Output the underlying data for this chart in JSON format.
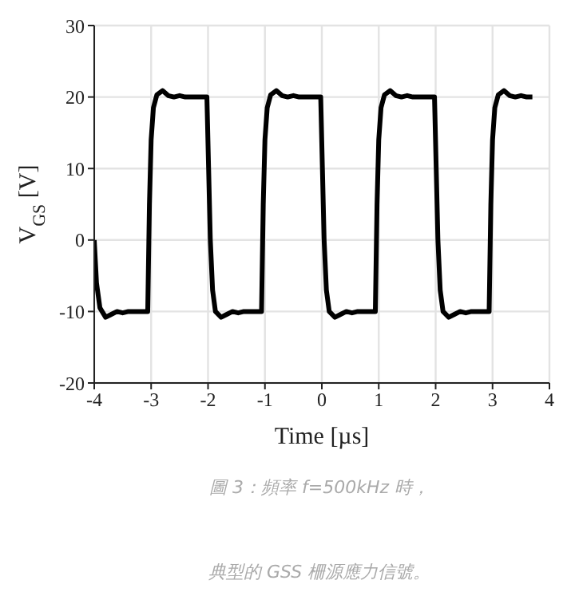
{
  "chart_data": {
    "type": "line",
    "xlabel": "Time [µs]",
    "ylabel": "V$_{GS}$ [V]",
    "xlim": [
      -4,
      4
    ],
    "xticks": [
      -4,
      -3,
      -2,
      -1,
      0,
      1,
      2,
      3,
      4
    ],
    "ylim": [
      -20,
      30
    ],
    "yticks": [
      -20,
      -10,
      0,
      10,
      20,
      30
    ],
    "grid": true,
    "legend": false,
    "marker": "none",
    "line_style": "solid",
    "annotations": [
      "圖 3：頻率 f=500kHz 時，",
      "典型的 GSS 柵源應力信號。"
    ],
    "series": [
      {
        "color": "#000000",
        "x": [
          -4,
          -3.96,
          -3.9,
          -3.8,
          -3.7,
          -3.6,
          -3.5,
          -3.4,
          -3.06,
          -3.03,
          -3,
          -2.96,
          -2.9,
          -2.8,
          -2.7,
          -2.6,
          -2.5,
          -2.4,
          -2.02,
          -1.99,
          -1.96,
          -1.92,
          -1.87,
          -1.77,
          -1.67,
          -1.57,
          -1.47,
          -1.37,
          -1.06,
          -1.03,
          -1,
          -0.96,
          -0.9,
          -0.8,
          -0.7,
          -0.6,
          -0.5,
          -0.4,
          -0.02,
          0.01,
          0.04,
          0.08,
          0.13,
          0.23,
          0.33,
          0.43,
          0.53,
          0.63,
          0.94,
          0.97,
          1,
          1.04,
          1.1,
          1.2,
          1.3,
          1.4,
          1.5,
          1.6,
          1.98,
          2.01,
          2.04,
          2.08,
          2.13,
          2.23,
          2.33,
          2.43,
          2.53,
          2.63,
          2.94,
          2.97,
          3,
          3.04,
          3.1,
          3.2,
          3.3,
          3.4,
          3.5,
          3.6,
          3.7
        ],
        "values": [
          0,
          -6,
          -9.5,
          -10.8,
          -10.4,
          -10,
          -10.2,
          -10,
          -10,
          5,
          14,
          18.5,
          20.3,
          20.9,
          20.2,
          20,
          20.2,
          20,
          20,
          10,
          0,
          -7,
          -10,
          -10.8,
          -10.4,
          -10,
          -10.2,
          -10,
          -10,
          5,
          14,
          18.5,
          20.3,
          20.9,
          20.2,
          20,
          20.2,
          20,
          20,
          10,
          0,
          -7,
          -10,
          -10.8,
          -10.4,
          -10,
          -10.2,
          -10,
          -10,
          5,
          14,
          18.5,
          20.3,
          20.9,
          20.2,
          20,
          20.2,
          20,
          20,
          10,
          0,
          -7,
          -10,
          -10.8,
          -10.4,
          -10,
          -10.2,
          -10,
          -10,
          5,
          14,
          18.5,
          20.3,
          20.9,
          20.2,
          20,
          20.2,
          20,
          20
        ]
      }
    ]
  }
}
